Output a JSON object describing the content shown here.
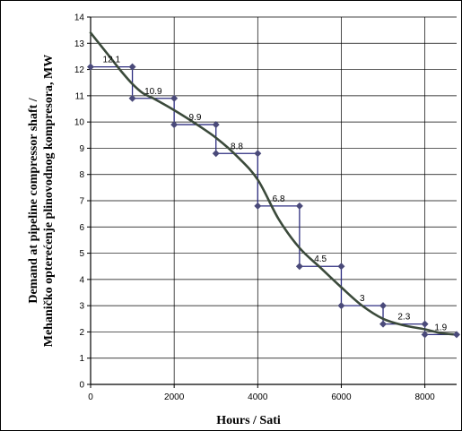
{
  "chart_data": {
    "type": "line",
    "xlabel": "Hours / Sati",
    "ylabel_lines": [
      "Demand at pipeline compressor shaft  /",
      "Mehaničko opterećenje plinovodnog kompresora, MW"
    ],
    "xlim": [
      0,
      8760
    ],
    "ylim": [
      0,
      14
    ],
    "x_ticks": [
      0,
      2000,
      4000,
      6000,
      8000
    ],
    "y_ticks": [
      0,
      1,
      2,
      3,
      4,
      5,
      6,
      7,
      8,
      9,
      10,
      11,
      12,
      13,
      14
    ],
    "grid": true,
    "legend": "none",
    "colors": {
      "step_series": "#2e2e80",
      "marker": "#4a4a7a",
      "curve": "#3b4a3b",
      "grid": "#000000"
    },
    "series": [
      {
        "kind": "step",
        "steps": [
          {
            "x_start": 0,
            "x_end": 1000,
            "value": 12.1,
            "label": "12.1"
          },
          {
            "x_start": 1000,
            "x_end": 2000,
            "value": 10.9,
            "label": "10.9"
          },
          {
            "x_start": 2000,
            "x_end": 3000,
            "value": 9.9,
            "label": "9.9"
          },
          {
            "x_start": 3000,
            "x_end": 4000,
            "value": 8.8,
            "label": "8.8"
          },
          {
            "x_start": 4000,
            "x_end": 5000,
            "value": 6.8,
            "label": "6.8"
          },
          {
            "x_start": 5000,
            "x_end": 6000,
            "value": 4.5,
            "label": "4.5"
          },
          {
            "x_start": 6000,
            "x_end": 7000,
            "value": 3,
            "label": "3"
          },
          {
            "x_start": 7000,
            "x_end": 8000,
            "value": 2.3,
            "label": "2.3"
          },
          {
            "x_start": 8000,
            "x_end": 8760,
            "value": 1.9,
            "label": "1.9"
          }
        ]
      },
      {
        "kind": "curve",
        "x": [
          0,
          250,
          500,
          750,
          1000,
          1250,
          1500,
          2000,
          2500,
          3000,
          3500,
          4000,
          4500,
          5000,
          5500,
          6000,
          6500,
          7000,
          7500,
          8000,
          8400,
          8760
        ],
        "y": [
          13.4,
          12.9,
          12.4,
          11.9,
          11.45,
          11.1,
          10.9,
          10.45,
          9.95,
          9.4,
          8.7,
          7.8,
          6.3,
          5.2,
          4.45,
          3.7,
          3.0,
          2.5,
          2.25,
          2.1,
          1.95,
          1.9
        ]
      }
    ]
  }
}
